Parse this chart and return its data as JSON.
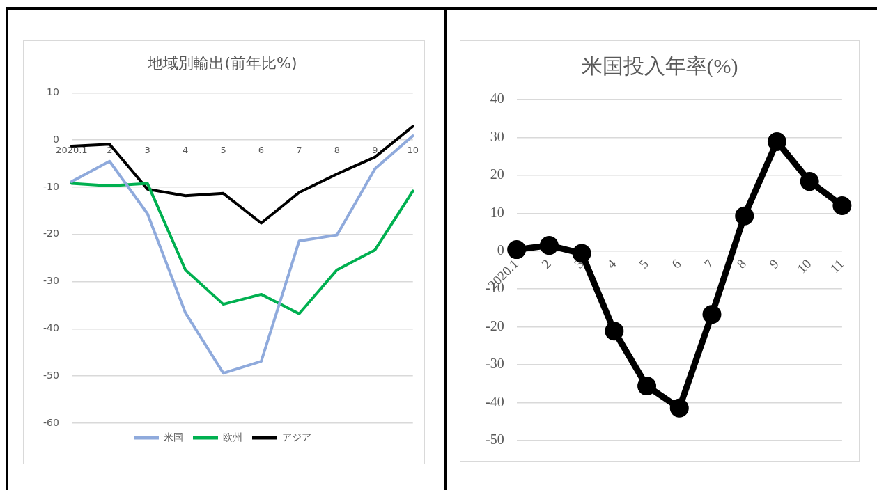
{
  "chart_data": [
    {
      "type": "line",
      "title": "地域別輸出(前年比%)",
      "categories": [
        "2020.1",
        "2",
        "3",
        "4",
        "5",
        "6",
        "7",
        "8",
        "9",
        "10"
      ],
      "ylim": [
        -60,
        10
      ],
      "yticks": [
        10,
        0,
        -10,
        -20,
        -30,
        -40,
        -50,
        -60
      ],
      "grid": "y",
      "legend": "bottom",
      "marker": "none",
      "series": [
        {
          "name": "米国",
          "color": "#8faadc",
          "values": [
            -8.8,
            -4.5,
            -15.6,
            -36.6,
            -49.4,
            -46.9,
            -21.4,
            -20.1,
            -6.1,
            0.9
          ]
        },
        {
          "name": "欧州",
          "color": "#00b050",
          "values": [
            -9.2,
            -9.7,
            -9.2,
            -27.5,
            -34.8,
            -32.7,
            -36.8,
            -27.5,
            -23.3,
            -10.8
          ]
        },
        {
          "name": "アジア",
          "color": "#000000",
          "values": [
            -1.3,
            -0.9,
            -10.4,
            -11.8,
            -11.3,
            -17.6,
            -11.1,
            -7.2,
            -3.6,
            2.9
          ]
        }
      ]
    },
    {
      "type": "line",
      "title": "米国投入年率(%)",
      "categories": [
        "2020.1",
        "2",
        "3",
        "4",
        "5",
        "6",
        "7",
        "8",
        "9",
        "10",
        "11"
      ],
      "ylim": [
        -50,
        40
      ],
      "yticks": [
        40,
        30,
        20,
        10,
        0,
        -10,
        -20,
        -30,
        -40,
        -50
      ],
      "grid": "y",
      "marker": "circle",
      "series": [
        {
          "color": "#000000",
          "values": [
            0.4,
            1.5,
            -0.6,
            -21.1,
            -35.6,
            -41.4,
            -16.7,
            9.3,
            28.9,
            18.4,
            12.0
          ]
        }
      ]
    }
  ]
}
